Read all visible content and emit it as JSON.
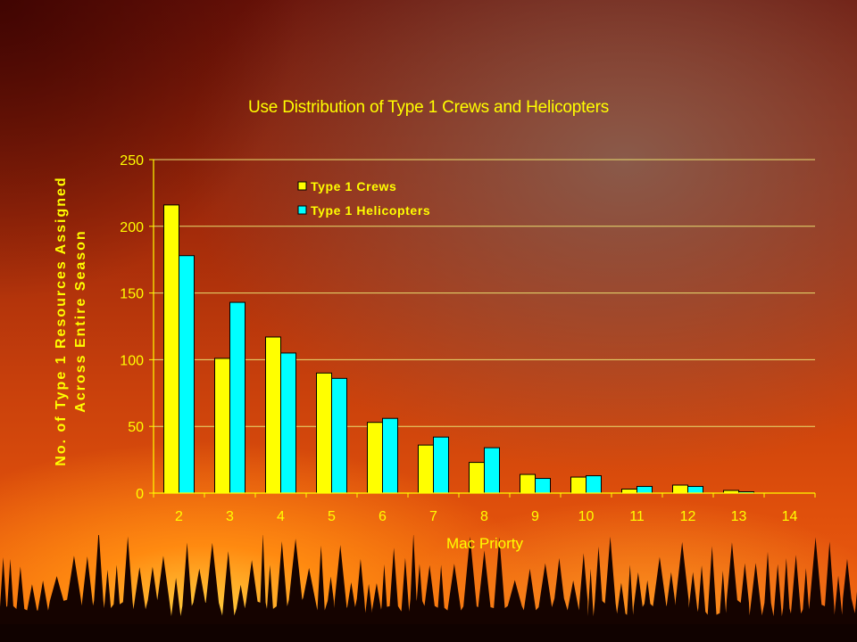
{
  "chart_data": {
    "type": "bar",
    "title": "Use Distribution of Type 1 Crews and Helicopters",
    "xlabel": "Mac Priorty",
    "ylabel_line1": "No. of Type 1 Resources Assigned",
    "ylabel_line2": "Across Entire Season",
    "categories": [
      "2",
      "3",
      "4",
      "5",
      "6",
      "7",
      "8",
      "9",
      "10",
      "11",
      "12",
      "13",
      "14"
    ],
    "series": [
      {
        "name": "Type 1 Crews",
        "color": "#ffff00",
        "values": [
          216,
          101,
          117,
          90,
          53,
          36,
          23,
          14,
          12,
          3,
          6,
          2,
          0
        ]
      },
      {
        "name": "Type 1 Helicopters",
        "color": "#00ffff",
        "values": [
          178,
          143,
          105,
          86,
          56,
          42,
          34,
          11,
          13,
          5,
          5,
          1,
          0
        ]
      }
    ],
    "ylim": [
      0,
      250
    ],
    "yticks": [
      "0",
      "50",
      "100",
      "150",
      "200",
      "250"
    ],
    "grid": true,
    "legend_position": "top-left",
    "colors": {
      "axis_text": "#ffff00",
      "gridline": "#e8e070",
      "bar_stroke": "#000000"
    }
  }
}
